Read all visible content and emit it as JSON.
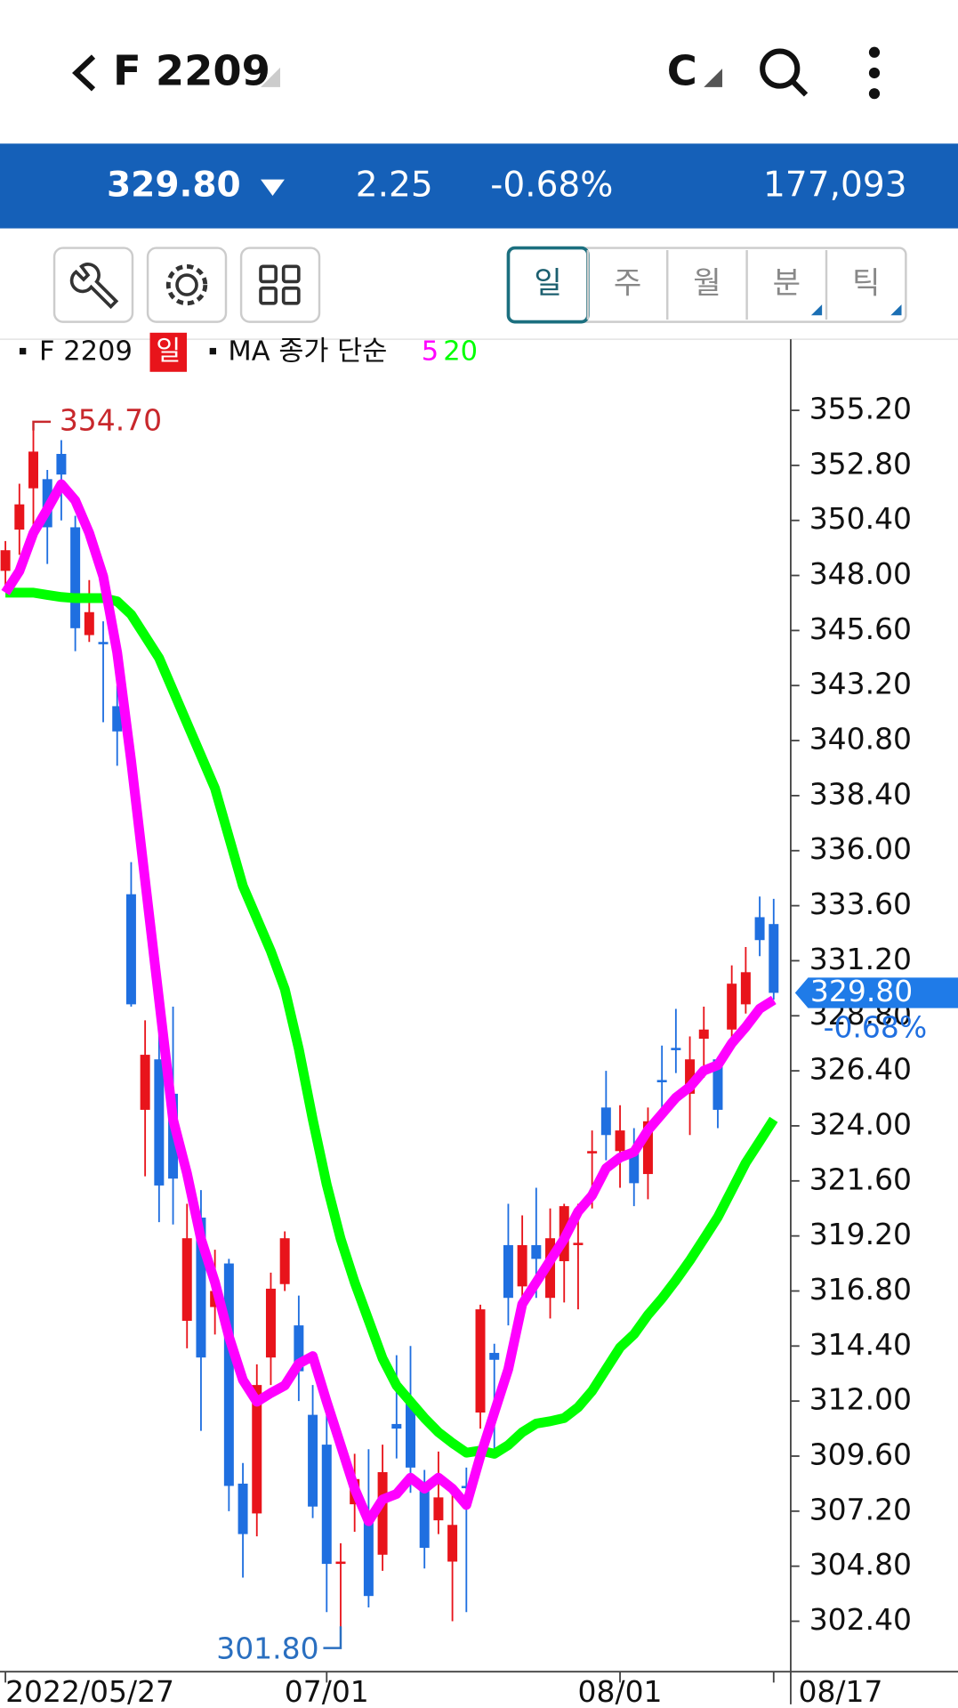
{
  "header": {
    "symbol": "F 2209",
    "menu": "C"
  },
  "quote": {
    "price": "329.80",
    "change": "2.25",
    "change_pct": "-0.68%",
    "volume": "177,093"
  },
  "tabs": [
    "일",
    "주",
    "월",
    "분",
    "틱"
  ],
  "chart_data": {
    "type": "candlestick",
    "period": "일",
    "legend_label": "MA 종가 단순",
    "categories": [
      "2022/05/27",
      null,
      null,
      null,
      null,
      null,
      null,
      null,
      null,
      null,
      null,
      null,
      null,
      null,
      null,
      null,
      null,
      null,
      null,
      null,
      null,
      null,
      null,
      "07/01",
      null,
      null,
      null,
      null,
      null,
      null,
      null,
      null,
      null,
      null,
      null,
      null,
      null,
      null,
      null,
      null,
      null,
      null,
      null,
      null,
      "08/01",
      null,
      null,
      null,
      null,
      null,
      null,
      null,
      null,
      null,
      null,
      "08/17"
    ],
    "series": [
      {
        "name": "F 2209",
        "type": "candlestick",
        "up_color": "#e8141b",
        "down_color": "#1f6fe0",
        "open": [
          348.2,
          350.0,
          351.8,
          352.2,
          353.3,
          350.1,
          345.4,
          345.1,
          342.3,
          334.1,
          324.7,
          326.9,
          325.4,
          315.5,
          320.0,
          316.1,
          318.0,
          308.4,
          307.1,
          313.9,
          317.1,
          315.3,
          311.4,
          310.1,
          304.9,
          307.5,
          307.2,
          305.3,
          311.0,
          312.0,
          308.2,
          306.8,
          305.0,
          308.3,
          311.5,
          314.1,
          318.8,
          317.0,
          318.8,
          316.5,
          318.1,
          318.8,
          322.8,
          324.8,
          322.9,
          323.0,
          321.9,
          326.0,
          327.4,
          325.4,
          327.8,
          326.9,
          328.2,
          329.3,
          333.1,
          332.8
        ],
        "high": [
          349.5,
          352.0,
          354.7,
          352.6,
          353.9,
          350.6,
          347.8,
          346.0,
          343.2,
          335.5,
          328.6,
          328.0,
          329.2,
          320.6,
          321.2,
          318.6,
          318.2,
          309.3,
          313.6,
          317.6,
          319.4,
          316.6,
          312.7,
          311.8,
          305.8,
          309.7,
          309.9,
          310.1,
          314.0,
          314.4,
          309.0,
          309.8,
          307.9,
          309.1,
          316.2,
          314.5,
          320.6,
          320.1,
          321.3,
          320.4,
          320.6,
          320.6,
          323.8,
          326.4,
          324.9,
          323.9,
          324.8,
          327.5,
          329.1,
          327.9,
          329.2,
          327.0,
          331.0,
          331.8,
          334.0,
          333.9
        ],
        "low": [
          347.3,
          348.9,
          349.7,
          348.5,
          350.4,
          344.7,
          345.1,
          341.6,
          339.7,
          329.2,
          321.8,
          319.8,
          319.7,
          314.3,
          310.7,
          314.9,
          307.2,
          304.3,
          306.1,
          312.7,
          316.8,
          312.0,
          306.9,
          302.8,
          301.8,
          306.3,
          303.0,
          304.6,
          309.5,
          308.0,
          304.7,
          306.2,
          302.4,
          302.8,
          310.8,
          309.8,
          315.3,
          315.6,
          316.5,
          315.6,
          316.3,
          316.0,
          320.4,
          322.5,
          321.3,
          320.5,
          320.8,
          324.6,
          326.3,
          323.6,
          326.1,
          323.9,
          327.6,
          328.9,
          331.4,
          329.5
        ],
        "close": [
          349.1,
          351.1,
          353.4,
          350.1,
          352.4,
          345.7,
          346.4,
          345.0,
          341.2,
          329.3,
          327.1,
          321.4,
          321.7,
          319.1,
          313.9,
          316.8,
          308.3,
          306.2,
          312.7,
          316.9,
          319.1,
          313.3,
          307.4,
          304.9,
          305.0,
          308.6,
          303.5,
          308.9,
          310.8,
          309.1,
          305.6,
          307.8,
          306.6,
          308.2,
          316.0,
          313.8,
          316.5,
          318.8,
          318.2,
          319.1,
          320.5,
          318.9,
          322.9,
          323.6,
          323.8,
          321.5,
          324.2,
          325.9,
          327.3,
          326.9,
          328.2,
          324.7,
          330.2,
          330.7,
          332.1,
          329.8
        ]
      },
      {
        "name": "5",
        "type": "line",
        "color": "#ff00ff",
        "values": [
          347.25,
          348.19,
          349.85,
          350.89,
          351.98,
          351.27,
          349.85,
          347.96,
          344.64,
          339.91,
          334.7,
          329.49,
          324.28,
          321.92,
          319.07,
          317.18,
          314.81,
          312.92,
          311.97,
          312.35,
          312.68,
          313.63,
          313.96,
          311.97,
          310.08,
          308.18,
          306.76,
          307.71,
          307.95,
          308.66,
          308.18,
          308.66,
          308.18,
          307.47,
          309.6,
          311.5,
          313.39,
          316.23,
          317.18,
          318.13,
          319.07,
          320.26,
          320.97,
          322.15,
          322.62,
          322.86,
          323.81,
          324.52,
          325.23,
          325.7,
          326.41,
          326.65,
          327.6,
          328.31,
          329.11,
          329.49
        ]
      },
      {
        "name": "20",
        "type": "line",
        "color": "#00ff00",
        "values": [
          347.25,
          347.25,
          347.25,
          347.15,
          347.06,
          347.01,
          347.01,
          347.01,
          346.87,
          346.3,
          345.35,
          344.4,
          342.98,
          341.56,
          340.14,
          338.72,
          336.59,
          334.46,
          333.04,
          331.62,
          329.96,
          327.36,
          324.28,
          321.44,
          319.07,
          317.18,
          315.52,
          313.86,
          312.68,
          311.97,
          311.26,
          310.64,
          310.17,
          309.75,
          309.84,
          309.7,
          310.08,
          310.64,
          311.02,
          311.12,
          311.26,
          311.73,
          312.44,
          313.39,
          314.34,
          314.91,
          315.76,
          316.47,
          317.27,
          318.13,
          319.07,
          320.02,
          321.2,
          322.39,
          323.33,
          324.28
        ]
      }
    ],
    "max_label": {
      "value": 354.7,
      "label": "354.70"
    },
    "min_label": {
      "value": 301.8,
      "label": "301.80"
    },
    "last_label": {
      "value": 329.8,
      "label": "329.80"
    },
    "last_change": "-0.68%",
    "ylim": [
      300.2,
      358.3
    ],
    "yticks": [
      {
        "value": 302.4,
        "label": "302.40"
      },
      {
        "value": 304.8,
        "label": "304.80"
      },
      {
        "value": 307.2,
        "label": "307.20"
      },
      {
        "value": 309.6,
        "label": "309.60"
      },
      {
        "value": 312,
        "label": "312.00"
      },
      {
        "value": 314.4,
        "label": "314.40"
      },
      {
        "value": 316.8,
        "label": "316.80"
      },
      {
        "value": 319.2,
        "label": "319.20"
      },
      {
        "value": 321.6,
        "label": "321.60"
      },
      {
        "value": 324,
        "label": "324.00"
      },
      {
        "value": 326.4,
        "label": "326.40"
      },
      {
        "value": 328.8,
        "label": "328.80"
      },
      {
        "value": 331.2,
        "label": "331.20"
      },
      {
        "value": 333.6,
        "label": "333.60"
      },
      {
        "value": 336,
        "label": "336.00"
      },
      {
        "value": 338.4,
        "label": "338.40"
      },
      {
        "value": 340.8,
        "label": "340.80"
      },
      {
        "value": 343.2,
        "label": "343.20"
      },
      {
        "value": 345.6,
        "label": "345.60"
      },
      {
        "value": 348,
        "label": "348.00"
      },
      {
        "value": 350.4,
        "label": "350.40"
      },
      {
        "value": 352.8,
        "label": "352.80"
      },
      {
        "value": 355.2,
        "label": "355.20"
      }
    ]
  }
}
